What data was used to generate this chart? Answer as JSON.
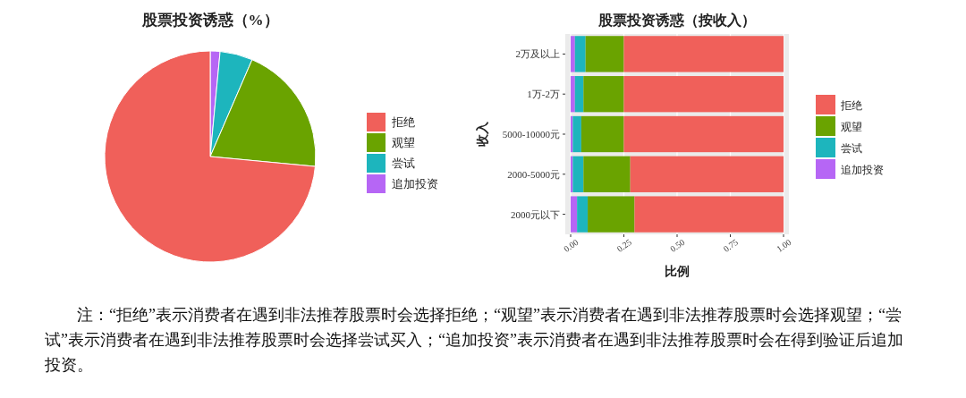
{
  "chart_data": [
    {
      "type": "pie",
      "title": "股票投资诱惑（%）",
      "categories": [
        "拒绝",
        "观望",
        "尝试",
        "追加投资"
      ],
      "values": [
        73.5,
        20,
        5,
        1.5
      ],
      "colors": [
        "#f0605a",
        "#6aa300",
        "#1db5bd",
        "#b666f5"
      ],
      "legend": "right",
      "annotations": [
        "注：“拒绝”表示消费者在遇到非法推荐股票时会选择拒绝；“观望”表示消费者在遇到非法推荐股票时会选择观望；“尝试”表示消费者在遇到非法推荐股票时会选择尝试买入；“追加投资”表示消费者在遇到非法推荐股票时会在得到验证后追加投资。"
      ]
    },
    {
      "type": "bar",
      "orientation": "horizontal",
      "stacked": true,
      "title": "股票投资诱惑（按收入）",
      "xlabel": "比例",
      "ylabel": "收入",
      "legend": "right",
      "grid": "x",
      "categories": [
        "2万及以上",
        "1万-2万",
        "5000-10000元",
        "2000-5000元",
        "2000元以下"
      ],
      "xlim": [
        0,
        1
      ],
      "xticks": [
        {
          "value": 0,
          "label": "0.00"
        },
        {
          "value": 0.25,
          "label": "0.25"
        },
        {
          "value": 0.5,
          "label": "0.50"
        },
        {
          "value": 0.75,
          "label": "0.75"
        },
        {
          "value": 1,
          "label": "1.00"
        }
      ],
      "series": [
        {
          "name": "追加投资",
          "color": "#b666f5",
          "values": [
            0.02,
            0.02,
            0.01,
            0.01,
            0.03
          ]
        },
        {
          "name": "尝试",
          "color": "#1db5bd",
          "values": [
            0.05,
            0.04,
            0.04,
            0.05,
            0.05
          ]
        },
        {
          "name": "观望",
          "color": "#6aa300",
          "values": [
            0.18,
            0.19,
            0.2,
            0.22,
            0.22
          ]
        },
        {
          "name": "拒绝",
          "color": "#f0605a",
          "values": [
            0.75,
            0.75,
            0.75,
            0.72,
            0.7
          ]
        }
      ]
    }
  ]
}
